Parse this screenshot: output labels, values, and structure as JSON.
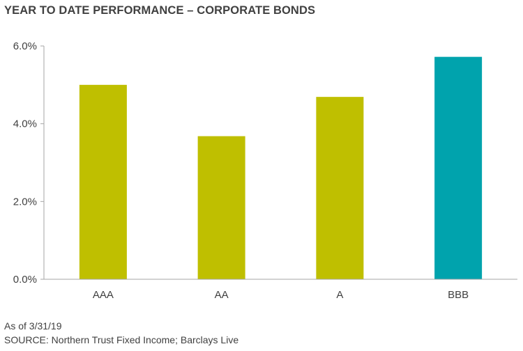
{
  "chart_data": {
    "type": "bar",
    "title": "YEAR TO DATE PERFORMANCE – CORPORATE BONDS",
    "categories": [
      "AAA",
      "AA",
      "A",
      "BBB"
    ],
    "values": [
      5.0,
      3.68,
      4.69,
      5.72
    ],
    "value_unit": "%",
    "ylim": [
      0,
      6
    ],
    "yticks": [
      {
        "value": 0,
        "label": "0.0%"
      },
      {
        "value": 2,
        "label": "2.0%"
      },
      {
        "value": 4,
        "label": "4.0%"
      },
      {
        "value": 6,
        "label": "6.0%"
      }
    ],
    "bar_colors": [
      "#BFBF00",
      "#BFBF00",
      "#BFBF00",
      "#00A3AD"
    ],
    "xlabel": "",
    "ylabel": "",
    "grid": false,
    "legend": "none"
  },
  "notes": {
    "as_of": "As of 3/31/19",
    "source": "SOURCE: Northern Trust Fixed Income; Barclays Live"
  },
  "colors": {
    "axis": "#A6A6A6",
    "text": "#404040"
  }
}
